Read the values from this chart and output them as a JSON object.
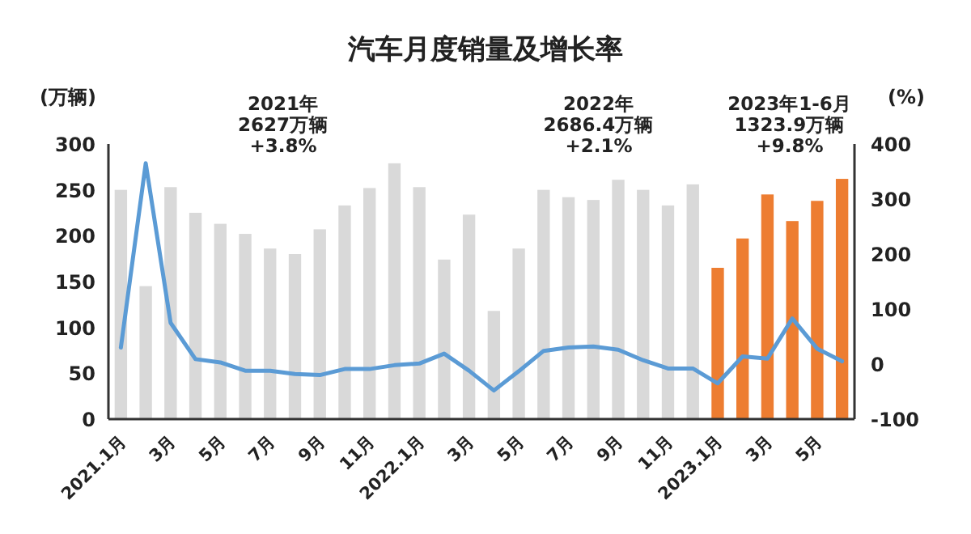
{
  "chart_data": {
    "type": "bar",
    "title": "汽车月度销量及增长率",
    "ylabel": "(万辆)",
    "y2label": "(%)",
    "categories": [
      "2021.1月",
      null,
      "3月",
      null,
      "5月",
      null,
      "7月",
      null,
      "9月",
      null,
      "11月",
      null,
      "2022.1月",
      null,
      "3月",
      null,
      "5月",
      null,
      "7月",
      null,
      "9月",
      null,
      "11月",
      null,
      "2023.1月",
      null,
      "3月",
      null,
      "5月",
      null
    ],
    "series": [
      {
        "values": [
          250,
          145,
          253,
          225,
          213,
          202,
          186,
          180,
          207,
          233,
          252,
          279,
          253,
          174,
          223,
          118,
          186,
          250,
          242,
          239,
          261,
          250,
          233,
          256,
          165,
          197,
          245,
          216,
          238,
          262
        ],
        "colors": [
          "#d9d9d9",
          "#d9d9d9",
          "#d9d9d9",
          "#d9d9d9",
          "#d9d9d9",
          "#d9d9d9",
          "#d9d9d9",
          "#d9d9d9",
          "#d9d9d9",
          "#d9d9d9",
          "#d9d9d9",
          "#d9d9d9",
          "#d9d9d9",
          "#d9d9d9",
          "#d9d9d9",
          "#d9d9d9",
          "#d9d9d9",
          "#d9d9d9",
          "#d9d9d9",
          "#d9d9d9",
          "#d9d9d9",
          "#d9d9d9",
          "#d9d9d9",
          "#d9d9d9",
          "#ed7d31",
          "#ed7d31",
          "#ed7d31",
          "#ed7d31",
          "#ed7d31",
          "#ed7d31"
        ]
      },
      {
        "type": "line",
        "axis": "y2",
        "color": "#5b9bd5",
        "values": [
          30,
          365,
          75,
          9,
          3,
          -12,
          -12,
          -18,
          -20,
          -9,
          -9,
          -2,
          1,
          19,
          -12,
          -48,
          -13,
          24,
          30,
          32,
          26,
          7,
          -8,
          -8,
          -35,
          14,
          10,
          83,
          28,
          5
        ]
      }
    ],
    "ylim": [
      0,
      300
    ],
    "yticks": [
      0,
      50,
      100,
      150,
      200,
      250,
      300
    ],
    "y2lim": [
      -100,
      400
    ],
    "y2ticks": [
      -100,
      0,
      100,
      200,
      300,
      400
    ],
    "annotations": [
      "2021年\n2627万辆\n+3.8%",
      "2022年\n2686.4万辆\n+2.1%",
      "2023年1-6月\n1323.9万辆\n+9.8%"
    ]
  }
}
